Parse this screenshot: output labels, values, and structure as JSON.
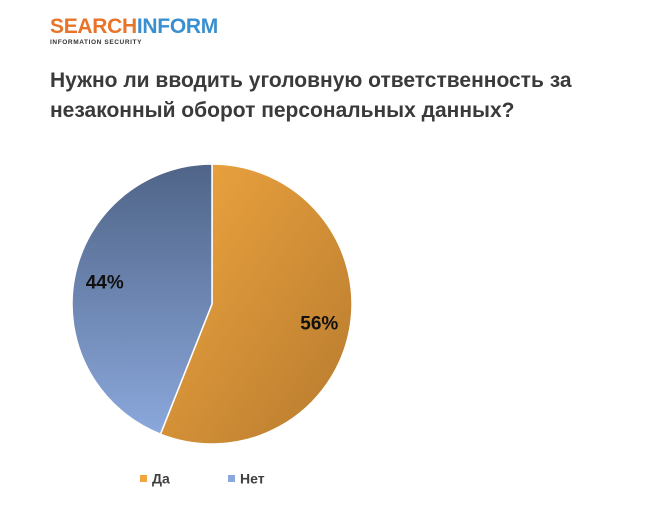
{
  "logo": {
    "part1": "SEARCH",
    "part2": "INFORM",
    "tagline": "INFORMATION SECURITY"
  },
  "chart_data": {
    "type": "pie",
    "title": "Нужно ли вводить уголовную ответственность за незаконный оборот персональных данных?",
    "slices": [
      {
        "name": "Да",
        "value": 56,
        "label": "56%",
        "color": "#f0a640",
        "color_dark": "#b67a2e"
      },
      {
        "name": "Нет",
        "value": 44,
        "label": "44%",
        "color": "#8ba8dc",
        "color_dark": "#4f6487"
      }
    ],
    "legend_position": "bottom-left"
  }
}
